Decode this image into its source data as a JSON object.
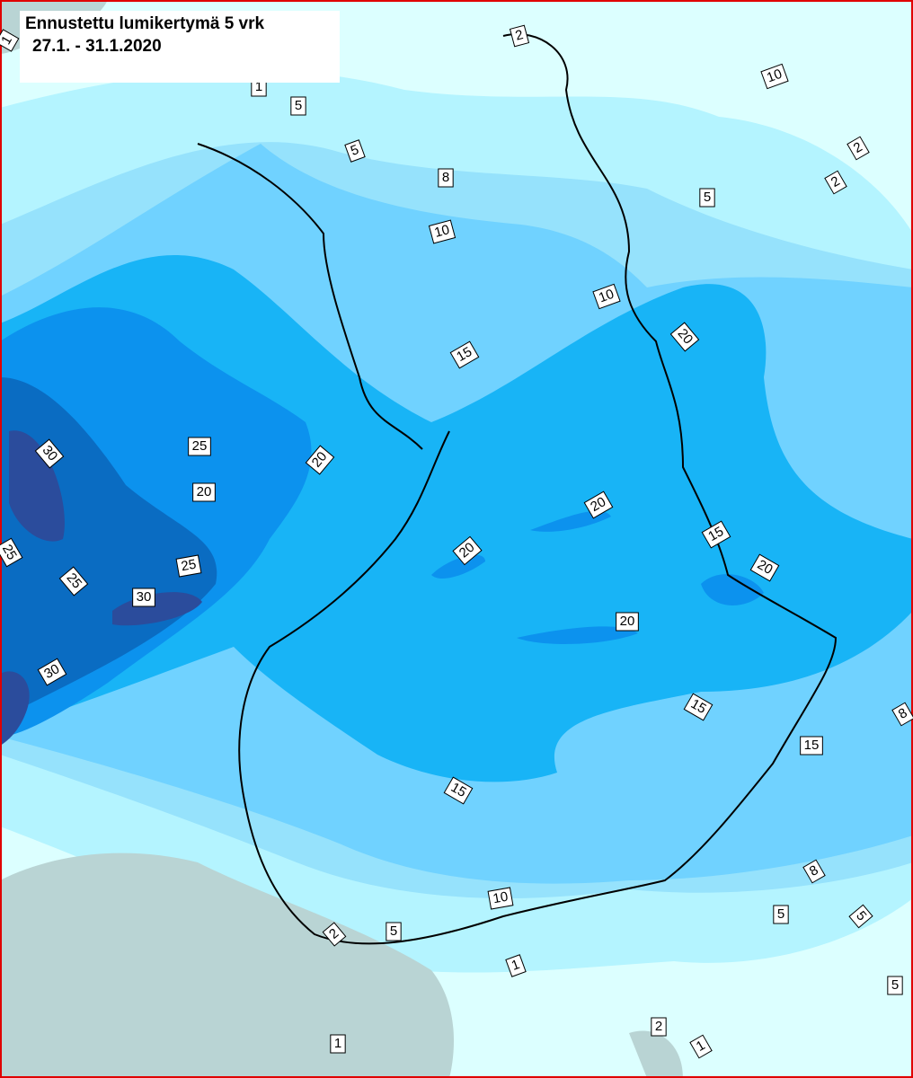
{
  "header": {
    "title": "Ennustettu lumikertymä 5 vrk",
    "period": "27.1. - 31.1.2020"
  },
  "contour_labels": [
    1,
    2,
    10,
    1,
    5,
    5,
    8,
    10,
    2,
    2,
    5,
    10,
    20,
    15,
    20,
    25,
    30,
    20,
    20,
    15,
    20,
    20,
    25,
    25,
    25,
    30,
    20,
    30,
    15,
    15,
    8,
    15,
    8,
    10,
    5,
    5,
    5,
    2,
    1,
    5,
    2,
    1,
    1
  ]
}
